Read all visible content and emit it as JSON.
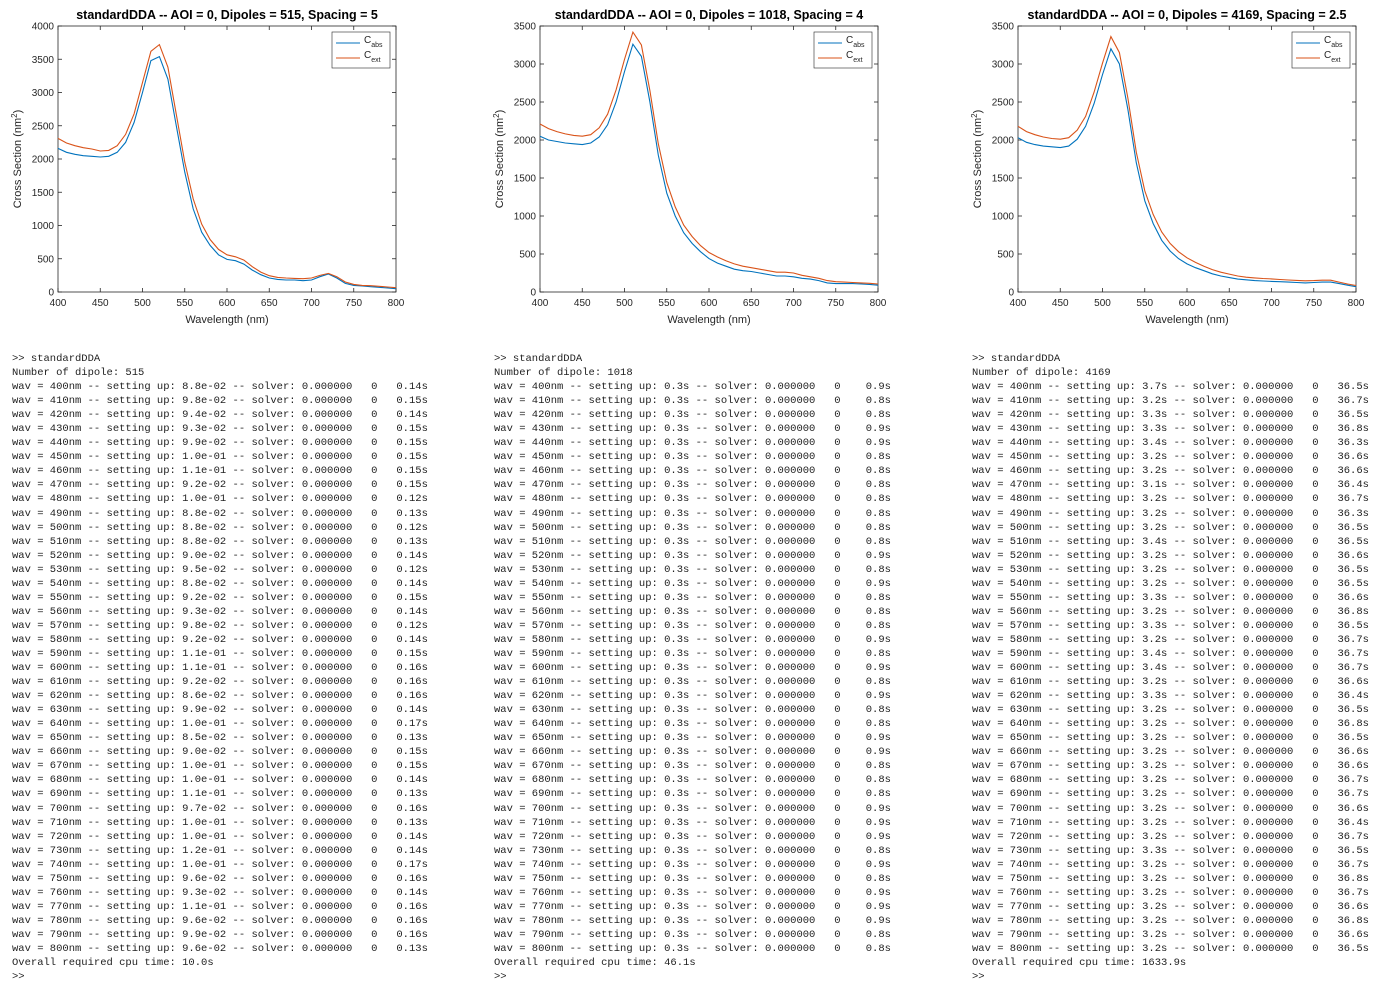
{
  "colors": {
    "abs": "#0072BD",
    "ext": "#D95319",
    "axis": "#262626",
    "title": "#000000"
  },
  "legend": {
    "abs_main": "C",
    "abs_sub": "abs",
    "ext_main": "C",
    "ext_sub": "ext"
  },
  "chart_data": [
    {
      "type": "line",
      "title": "standardDDA -- AOI = 0, Dipoles = 515, Spacing = 5",
      "xlabel": "Wavelength (nm)",
      "ylabel_main": "Cross Section (nm",
      "ylabel_sup": "2",
      "ylabel_end": ")",
      "xlim": [
        400,
        800
      ],
      "ylim": [
        0,
        4000
      ],
      "xticks": [
        400,
        450,
        500,
        550,
        600,
        650,
        700,
        750,
        800
      ],
      "yticks": [
        0,
        500,
        1000,
        1500,
        2000,
        2500,
        3000,
        3500,
        4000
      ],
      "legend_position": "top-right",
      "x": [
        400,
        410,
        420,
        430,
        440,
        450,
        460,
        470,
        480,
        490,
        500,
        510,
        520,
        530,
        540,
        550,
        560,
        570,
        580,
        590,
        600,
        610,
        620,
        630,
        640,
        650,
        660,
        670,
        680,
        690,
        700,
        710,
        720,
        730,
        740,
        750,
        760,
        770,
        780,
        790,
        800
      ],
      "series": [
        {
          "name": "C_abs",
          "values": [
            2160,
            2100,
            2070,
            2050,
            2040,
            2030,
            2040,
            2100,
            2250,
            2550,
            3000,
            3480,
            3540,
            3200,
            2500,
            1800,
            1250,
            900,
            700,
            560,
            490,
            470,
            420,
            330,
            260,
            210,
            190,
            180,
            180,
            170,
            180,
            230,
            270,
            210,
            130,
            100,
            90,
            80,
            70,
            60,
            50
          ]
        },
        {
          "name": "C_ext",
          "values": [
            2310,
            2240,
            2200,
            2170,
            2150,
            2120,
            2130,
            2200,
            2370,
            2680,
            3150,
            3620,
            3720,
            3380,
            2670,
            1950,
            1400,
            1020,
            790,
            640,
            560,
            530,
            480,
            380,
            300,
            245,
            220,
            210,
            205,
            200,
            210,
            250,
            280,
            230,
            150,
            115,
            100,
            95,
            85,
            75,
            65
          ]
        }
      ]
    },
    {
      "type": "line",
      "title": "standardDDA -- AOI = 0, Dipoles = 1018, Spacing = 4",
      "xlabel": "Wavelength (nm)",
      "ylabel_main": "Cross Section (nm",
      "ylabel_sup": "2",
      "ylabel_end": ")",
      "xlim": [
        400,
        800
      ],
      "ylim": [
        0,
        3500
      ],
      "xticks": [
        400,
        450,
        500,
        550,
        600,
        650,
        700,
        750,
        800
      ],
      "yticks": [
        0,
        500,
        1000,
        1500,
        2000,
        2500,
        3000,
        3500
      ],
      "legend_position": "top-right",
      "x": [
        400,
        410,
        420,
        430,
        440,
        450,
        460,
        470,
        480,
        490,
        500,
        510,
        520,
        530,
        540,
        550,
        560,
        570,
        580,
        590,
        600,
        610,
        620,
        630,
        640,
        650,
        660,
        670,
        680,
        690,
        700,
        710,
        720,
        730,
        740,
        750,
        760,
        770,
        780,
        790,
        800
      ],
      "series": [
        {
          "name": "C_abs",
          "values": [
            2050,
            2000,
            1980,
            1960,
            1950,
            1940,
            1960,
            2040,
            2200,
            2500,
            2900,
            3260,
            3100,
            2500,
            1800,
            1300,
            1000,
            780,
            640,
            530,
            440,
            380,
            340,
            300,
            280,
            270,
            250,
            230,
            210,
            210,
            200,
            180,
            170,
            150,
            120,
            110,
            110,
            110,
            105,
            100,
            90
          ]
        },
        {
          "name": "C_ext",
          "values": [
            2210,
            2150,
            2110,
            2080,
            2060,
            2050,
            2070,
            2160,
            2340,
            2660,
            3060,
            3420,
            3250,
            2650,
            1950,
            1440,
            1120,
            880,
            730,
            610,
            520,
            460,
            410,
            370,
            340,
            320,
            300,
            280,
            260,
            260,
            250,
            220,
            200,
            180,
            150,
            135,
            130,
            125,
            120,
            115,
            105
          ]
        }
      ]
    },
    {
      "type": "line",
      "title": "standardDDA -- AOI = 0, Dipoles = 4169, Spacing = 2.5",
      "xlabel": "Wavelength (nm)",
      "ylabel_main": "Cross Section (nm",
      "ylabel_sup": "2",
      "ylabel_end": ")",
      "xlim": [
        400,
        800
      ],
      "ylim": [
        0,
        3500
      ],
      "xticks": [
        400,
        450,
        500,
        550,
        600,
        650,
        700,
        750,
        800
      ],
      "yticks": [
        0,
        500,
        1000,
        1500,
        2000,
        2500,
        3000,
        3500
      ],
      "legend_position": "top-right",
      "x": [
        400,
        410,
        420,
        430,
        440,
        450,
        460,
        470,
        480,
        490,
        500,
        510,
        520,
        530,
        540,
        550,
        560,
        570,
        580,
        590,
        600,
        610,
        620,
        630,
        640,
        650,
        660,
        670,
        680,
        690,
        700,
        710,
        720,
        730,
        740,
        750,
        760,
        770,
        780,
        790,
        800
      ],
      "series": [
        {
          "name": "C_abs",
          "values": [
            2030,
            1970,
            1940,
            1920,
            1910,
            1900,
            1920,
            2010,
            2180,
            2480,
            2860,
            3200,
            3000,
            2400,
            1700,
            1200,
            900,
            680,
            540,
            440,
            370,
            320,
            280,
            240,
            210,
            190,
            170,
            160,
            150,
            145,
            140,
            135,
            130,
            125,
            120,
            125,
            130,
            130,
            110,
            90,
            70
          ]
        },
        {
          "name": "C_ext",
          "values": [
            2180,
            2110,
            2070,
            2040,
            2020,
            2010,
            2030,
            2130,
            2310,
            2630,
            3010,
            3360,
            3150,
            2550,
            1840,
            1330,
            1020,
            790,
            640,
            530,
            450,
            390,
            340,
            295,
            260,
            235,
            210,
            195,
            185,
            178,
            172,
            165,
            158,
            152,
            148,
            150,
            155,
            155,
            130,
            105,
            85
          ]
        }
      ]
    }
  ],
  "consoles": [
    {
      "lines": [
        ">> standardDDA",
        "Number of dipole: 515",
        "wav = 400nm -- setting up: 8.8e-02 -- solver: 0.000000   0   0.14s",
        "wav = 410nm -- setting up: 9.8e-02 -- solver: 0.000000   0   0.15s",
        "wav = 420nm -- setting up: 9.4e-02 -- solver: 0.000000   0   0.14s",
        "wav = 430nm -- setting up: 9.3e-02 -- solver: 0.000000   0   0.15s",
        "wav = 440nm -- setting up: 9.9e-02 -- solver: 0.000000   0   0.15s",
        "wav = 450nm -- setting up: 1.0e-01 -- solver: 0.000000   0   0.15s",
        "wav = 460nm -- setting up: 1.1e-01 -- solver: 0.000000   0   0.15s",
        "wav = 470nm -- setting up: 9.2e-02 -- solver: 0.000000   0   0.15s",
        "wav = 480nm -- setting up: 1.0e-01 -- solver: 0.000000   0   0.12s",
        "wav = 490nm -- setting up: 8.8e-02 -- solver: 0.000000   0   0.13s",
        "wav = 500nm -- setting up: 8.8e-02 -- solver: 0.000000   0   0.12s",
        "wav = 510nm -- setting up: 8.8e-02 -- solver: 0.000000   0   0.13s",
        "wav = 520nm -- setting up: 9.0e-02 -- solver: 0.000000   0   0.14s",
        "wav = 530nm -- setting up: 9.5e-02 -- solver: 0.000000   0   0.12s",
        "wav = 540nm -- setting up: 8.8e-02 -- solver: 0.000000   0   0.14s",
        "wav = 550nm -- setting up: 9.2e-02 -- solver: 0.000000   0   0.15s",
        "wav = 560nm -- setting up: 9.3e-02 -- solver: 0.000000   0   0.14s",
        "wav = 570nm -- setting up: 9.8e-02 -- solver: 0.000000   0   0.12s",
        "wav = 580nm -- setting up: 9.2e-02 -- solver: 0.000000   0   0.14s",
        "wav = 590nm -- setting up: 1.1e-01 -- solver: 0.000000   0   0.15s",
        "wav = 600nm -- setting up: 1.1e-01 -- solver: 0.000000   0   0.16s",
        "wav = 610nm -- setting up: 9.2e-02 -- solver: 0.000000   0   0.16s",
        "wav = 620nm -- setting up: 8.6e-02 -- solver: 0.000000   0   0.16s",
        "wav = 630nm -- setting up: 9.9e-02 -- solver: 0.000000   0   0.14s",
        "wav = 640nm -- setting up: 1.0e-01 -- solver: 0.000000   0   0.17s",
        "wav = 650nm -- setting up: 8.5e-02 -- solver: 0.000000   0   0.13s",
        "wav = 660nm -- setting up: 9.0e-02 -- solver: 0.000000   0   0.15s",
        "wav = 670nm -- setting up: 1.0e-01 -- solver: 0.000000   0   0.15s",
        "wav = 680nm -- setting up: 1.0e-01 -- solver: 0.000000   0   0.14s",
        "wav = 690nm -- setting up: 1.1e-01 -- solver: 0.000000   0   0.13s",
        "wav = 700nm -- setting up: 9.7e-02 -- solver: 0.000000   0   0.16s",
        "wav = 710nm -- setting up: 1.0e-01 -- solver: 0.000000   0   0.13s",
        "wav = 720nm -- setting up: 1.0e-01 -- solver: 0.000000   0   0.14s",
        "wav = 730nm -- setting up: 1.2e-01 -- solver: 0.000000   0   0.14s",
        "wav = 740nm -- setting up: 1.0e-01 -- solver: 0.000000   0   0.17s",
        "wav = 750nm -- setting up: 9.6e-02 -- solver: 0.000000   0   0.16s",
        "wav = 760nm -- setting up: 9.3e-02 -- solver: 0.000000   0   0.14s",
        "wav = 770nm -- setting up: 1.1e-01 -- solver: 0.000000   0   0.16s",
        "wav = 780nm -- setting up: 9.6e-02 -- solver: 0.000000   0   0.16s",
        "wav = 790nm -- setting up: 9.9e-02 -- solver: 0.000000   0   0.16s",
        "wav = 800nm -- setting up: 9.6e-02 -- solver: 0.000000   0   0.13s",
        "Overall required cpu time: 10.0s",
        ">>"
      ]
    },
    {
      "lines": [
        ">> standardDDA",
        "Number of dipole: 1018",
        "wav = 400nm -- setting up: 0.3s -- solver: 0.000000   0    0.9s",
        "wav = 410nm -- setting up: 0.3s -- solver: 0.000000   0    0.8s",
        "wav = 420nm -- setting up: 0.3s -- solver: 0.000000   0    0.8s",
        "wav = 430nm -- setting up: 0.3s -- solver: 0.000000   0    0.9s",
        "wav = 440nm -- setting up: 0.3s -- solver: 0.000000   0    0.9s",
        "wav = 450nm -- setting up: 0.3s -- solver: 0.000000   0    0.8s",
        "wav = 460nm -- setting up: 0.3s -- solver: 0.000000   0    0.8s",
        "wav = 470nm -- setting up: 0.3s -- solver: 0.000000   0    0.8s",
        "wav = 480nm -- setting up: 0.3s -- solver: 0.000000   0    0.8s",
        "wav = 490nm -- setting up: 0.3s -- solver: 0.000000   0    0.8s",
        "wav = 500nm -- setting up: 0.3s -- solver: 0.000000   0    0.8s",
        "wav = 510nm -- setting up: 0.3s -- solver: 0.000000   0    0.8s",
        "wav = 520nm -- setting up: 0.3s -- solver: 0.000000   0    0.9s",
        "wav = 530nm -- setting up: 0.3s -- solver: 0.000000   0    0.8s",
        "wav = 540nm -- setting up: 0.3s -- solver: 0.000000   0    0.9s",
        "wav = 550nm -- setting up: 0.3s -- solver: 0.000000   0    0.8s",
        "wav = 560nm -- setting up: 0.3s -- solver: 0.000000   0    0.8s",
        "wav = 570nm -- setting up: 0.3s -- solver: 0.000000   0    0.8s",
        "wav = 580nm -- setting up: 0.3s -- solver: 0.000000   0    0.9s",
        "wav = 590nm -- setting up: 0.3s -- solver: 0.000000   0    0.8s",
        "wav = 600nm -- setting up: 0.3s -- solver: 0.000000   0    0.9s",
        "wav = 610nm -- setting up: 0.3s -- solver: 0.000000   0    0.8s",
        "wav = 620nm -- setting up: 0.3s -- solver: 0.000000   0    0.9s",
        "wav = 630nm -- setting up: 0.3s -- solver: 0.000000   0    0.8s",
        "wav = 640nm -- setting up: 0.3s -- solver: 0.000000   0    0.8s",
        "wav = 650nm -- setting up: 0.3s -- solver: 0.000000   0    0.9s",
        "wav = 660nm -- setting up: 0.3s -- solver: 0.000000   0    0.9s",
        "wav = 670nm -- setting up: 0.3s -- solver: 0.000000   0    0.8s",
        "wav = 680nm -- setting up: 0.3s -- solver: 0.000000   0    0.8s",
        "wav = 690nm -- setting up: 0.3s -- solver: 0.000000   0    0.8s",
        "wav = 700nm -- setting up: 0.3s -- solver: 0.000000   0    0.9s",
        "wav = 710nm -- setting up: 0.3s -- solver: 0.000000   0    0.9s",
        "wav = 720nm -- setting up: 0.3s -- solver: 0.000000   0    0.9s",
        "wav = 730nm -- setting up: 0.3s -- solver: 0.000000   0    0.8s",
        "wav = 740nm -- setting up: 0.3s -- solver: 0.000000   0    0.9s",
        "wav = 750nm -- setting up: 0.3s -- solver: 0.000000   0    0.8s",
        "wav = 760nm -- setting up: 0.3s -- solver: 0.000000   0    0.9s",
        "wav = 770nm -- setting up: 0.3s -- solver: 0.000000   0    0.9s",
        "wav = 780nm -- setting up: 0.3s -- solver: 0.000000   0    0.9s",
        "wav = 790nm -- setting up: 0.3s -- solver: 0.000000   0    0.8s",
        "wav = 800nm -- setting up: 0.3s -- solver: 0.000000   0    0.8s",
        "Overall required cpu time: 46.1s",
        ">>"
      ]
    },
    {
      "lines": [
        ">> standardDDA",
        "Number of dipole: 4169",
        "wav = 400nm -- setting up: 3.7s -- solver: 0.000000   0   36.5s",
        "wav = 410nm -- setting up: 3.2s -- solver: 0.000000   0   36.7s",
        "wav = 420nm -- setting up: 3.3s -- solver: 0.000000   0   36.5s",
        "wav = 430nm -- setting up: 3.3s -- solver: 0.000000   0   36.8s",
        "wav = 440nm -- setting up: 3.4s -- solver: 0.000000   0   36.3s",
        "wav = 450nm -- setting up: 3.2s -- solver: 0.000000   0   36.6s",
        "wav = 460nm -- setting up: 3.2s -- solver: 0.000000   0   36.6s",
        "wav = 470nm -- setting up: 3.1s -- solver: 0.000000   0   36.4s",
        "wav = 480nm -- setting up: 3.2s -- solver: 0.000000   0   36.7s",
        "wav = 490nm -- setting up: 3.2s -- solver: 0.000000   0   36.3s",
        "wav = 500nm -- setting up: 3.2s -- solver: 0.000000   0   36.5s",
        "wav = 510nm -- setting up: 3.4s -- solver: 0.000000   0   36.5s",
        "wav = 520nm -- setting up: 3.2s -- solver: 0.000000   0   36.6s",
        "wav = 530nm -- setting up: 3.2s -- solver: 0.000000   0   36.5s",
        "wav = 540nm -- setting up: 3.2s -- solver: 0.000000   0   36.5s",
        "wav = 550nm -- setting up: 3.3s -- solver: 0.000000   0   36.6s",
        "wav = 560nm -- setting up: 3.2s -- solver: 0.000000   0   36.8s",
        "wav = 570nm -- setting up: 3.3s -- solver: 0.000000   0   36.5s",
        "wav = 580nm -- setting up: 3.2s -- solver: 0.000000   0   36.7s",
        "wav = 590nm -- setting up: 3.4s -- solver: 0.000000   0   36.7s",
        "wav = 600nm -- setting up: 3.4s -- solver: 0.000000   0   36.7s",
        "wav = 610nm -- setting up: 3.2s -- solver: 0.000000   0   36.6s",
        "wav = 620nm -- setting up: 3.3s -- solver: 0.000000   0   36.4s",
        "wav = 630nm -- setting up: 3.2s -- solver: 0.000000   0   36.5s",
        "wav = 640nm -- setting up: 3.2s -- solver: 0.000000   0   36.8s",
        "wav = 650nm -- setting up: 3.2s -- solver: 0.000000   0   36.5s",
        "wav = 660nm -- setting up: 3.2s -- solver: 0.000000   0   36.6s",
        "wav = 670nm -- setting up: 3.2s -- solver: 0.000000   0   36.6s",
        "wav = 680nm -- setting up: 3.2s -- solver: 0.000000   0   36.7s",
        "wav = 690nm -- setting up: 3.2s -- solver: 0.000000   0   36.7s",
        "wav = 700nm -- setting up: 3.2s -- solver: 0.000000   0   36.6s",
        "wav = 710nm -- setting up: 3.2s -- solver: 0.000000   0   36.4s",
        "wav = 720nm -- setting up: 3.2s -- solver: 0.000000   0   36.7s",
        "wav = 730nm -- setting up: 3.3s -- solver: 0.000000   0   36.5s",
        "wav = 740nm -- setting up: 3.2s -- solver: 0.000000   0   36.7s",
        "wav = 750nm -- setting up: 3.2s -- solver: 0.000000   0   36.8s",
        "wav = 760nm -- setting up: 3.2s -- solver: 0.000000   0   36.7s",
        "wav = 770nm -- setting up: 3.2s -- solver: 0.000000   0   36.6s",
        "wav = 780nm -- setting up: 3.2s -- solver: 0.000000   0   36.8s",
        "wav = 790nm -- setting up: 3.2s -- solver: 0.000000   0   36.6s",
        "wav = 800nm -- setting up: 3.2s -- solver: 0.000000   0   36.5s",
        "Overall required cpu time: 1633.9s",
        ">>"
      ]
    }
  ]
}
